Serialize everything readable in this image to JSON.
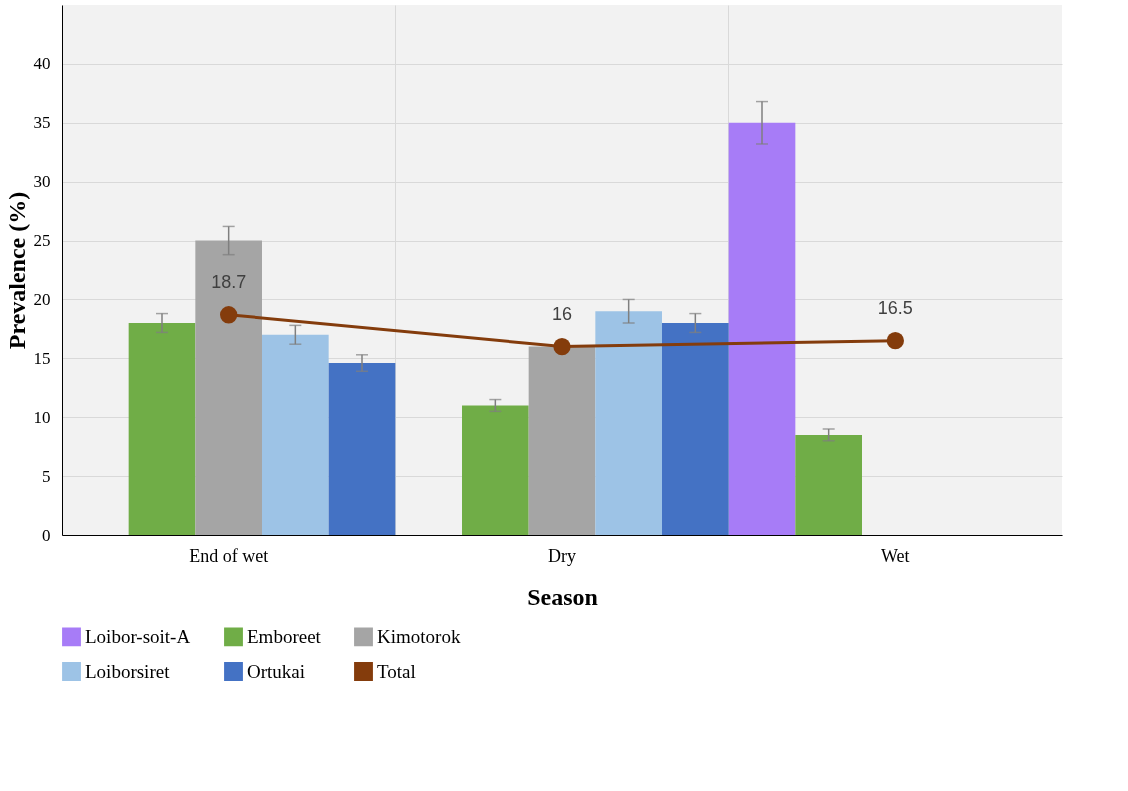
{
  "chart_data": {
    "type": "bar",
    "xlabel": "Season",
    "ylabel": "Prevalence (%)",
    "categories": [
      "End of wet",
      "Dry",
      "Wet"
    ],
    "ylim": [
      0,
      45
    ],
    "yticks": [
      0,
      5,
      10,
      15,
      20,
      25,
      30,
      35,
      40
    ],
    "grid": true,
    "legend": "bottom",
    "series": [
      {
        "name": "Loibor-soit-A",
        "color": "#a77cf7",
        "values": [
          null,
          null,
          35
        ],
        "errors": [
          null,
          null,
          1.8
        ]
      },
      {
        "name": "Emboreet",
        "color": "#70ad47",
        "values": [
          18,
          11,
          8.5
        ],
        "errors": [
          0.8,
          0.5,
          0.5
        ]
      },
      {
        "name": "Kimotorok",
        "color": "#a5a5a5",
        "values": [
          25,
          16,
          null
        ],
        "errors": [
          1.2,
          null,
          null
        ]
      },
      {
        "name": "Loiborsiret",
        "color": "#9dc3e6",
        "values": [
          17,
          19,
          null
        ],
        "errors": [
          0.8,
          1,
          null
        ]
      },
      {
        "name": "Ortukai",
        "color": "#4472c4",
        "values": [
          14.6,
          18,
          null
        ],
        "errors": [
          0.7,
          0.8,
          null
        ]
      },
      {
        "name": "Total",
        "type": "line",
        "color": "#843c0c",
        "marker": "circle",
        "data_labels": true,
        "values": [
          18.7,
          16,
          16.5
        ]
      }
    ]
  }
}
